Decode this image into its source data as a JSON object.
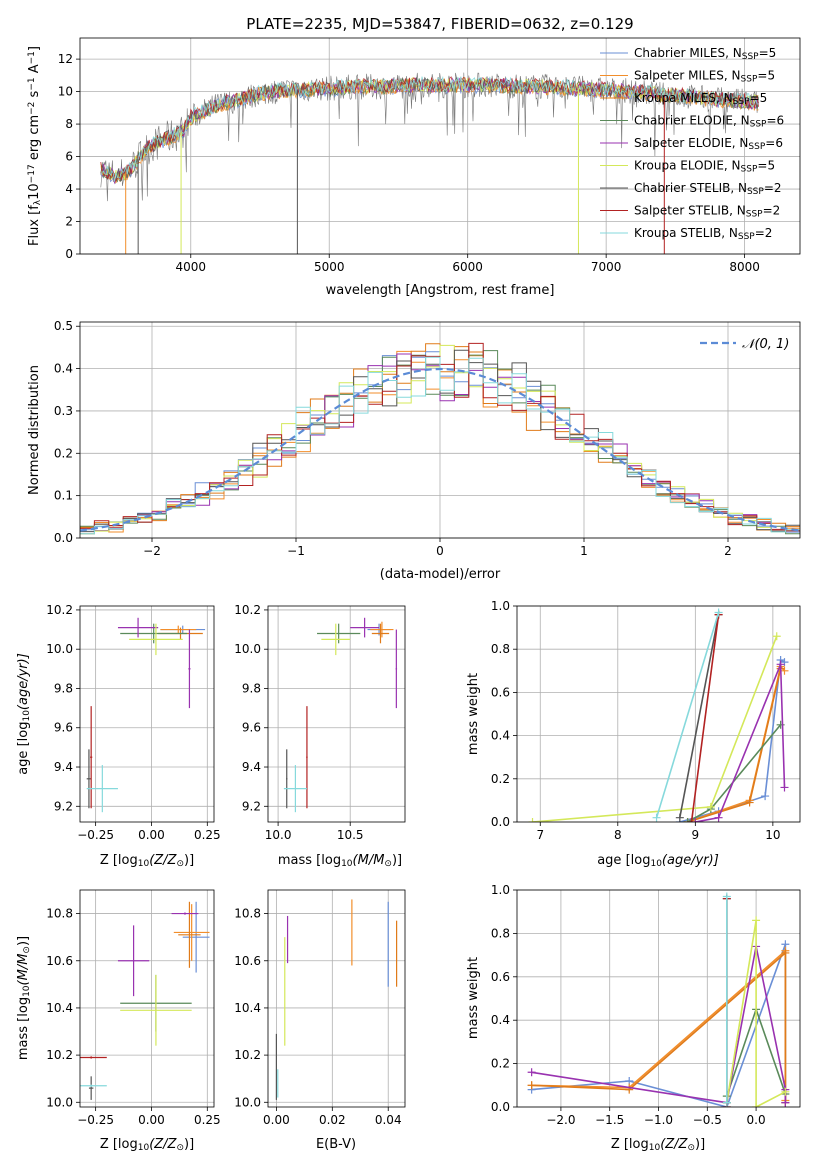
{
  "figure": {
    "title": "PLATE=2235, MJD=53847, FIBERID=0632, z=0.129"
  },
  "models": [
    {
      "label": "Chabrier MILES, N",
      "sub": "SSP",
      "suffix": "=5",
      "color": "#6a8fd6"
    },
    {
      "label": "Salpeter MILES, N",
      "sub": "SSP",
      "suffix": "=5",
      "color": "#f28e2b"
    },
    {
      "label": "Kroupa MILES, N",
      "sub": "SSP",
      "suffix": "=5",
      "color": "#e07b1a"
    },
    {
      "label": "Chabrier ELODIE, N",
      "sub": "SSP",
      "suffix": "=6",
      "color": "#5a8a5a"
    },
    {
      "label": "Salpeter ELODIE, N",
      "sub": "SSP",
      "suffix": "=6",
      "color": "#9932b0"
    },
    {
      "label": "Kroupa ELODIE, N",
      "sub": "SSP",
      "suffix": "=5",
      "color": "#d4e85a"
    },
    {
      "label": "Chabrier STELIB, N",
      "sub": "SSP",
      "suffix": "=2",
      "color": "#555555"
    },
    {
      "label": "Salpeter STELIB, N",
      "sub": "SSP",
      "suffix": "=2",
      "color": "#b22222"
    },
    {
      "label": "Kroupa STELIB, N",
      "sub": "SSP",
      "suffix": "=2",
      "color": "#86d9dc"
    }
  ],
  "chart_data": [
    {
      "id": "spectrum",
      "type": "line",
      "xlabel": "wavelength [Angstrom, rest frame]",
      "ylabel": "Flux [f",
      "ylabel_sub": "λ",
      "ylabel_rest": "10",
      "ylabel_sup1": "−17",
      "ylabel_rest2": " erg cm",
      "ylabel_sup2": "−2",
      "ylabel_rest3": " s",
      "ylabel_sup3": "−1",
      "ylabel_rest4": " A",
      "ylabel_sup4": "−1",
      "ylabel_end": "]",
      "xlim": [
        3200,
        8400
      ],
      "ylim": [
        0,
        13.3
      ],
      "xticks": [
        4000,
        5000,
        6000,
        7000,
        8000
      ],
      "yticks": [
        0,
        2,
        4,
        6,
        8,
        10,
        12
      ],
      "envelope": {
        "x": [
          3350,
          3400,
          3450,
          3500,
          3550,
          3600,
          3650,
          3700,
          3750,
          3800,
          3850,
          3900,
          3950,
          4000,
          4100,
          4200,
          4300,
          4400,
          4500,
          4600,
          4700,
          4800,
          4900,
          5000,
          5200,
          5400,
          5600,
          5800,
          6000,
          6200,
          6400,
          6600,
          6800,
          7000,
          7200,
          7400,
          7600,
          7800,
          8000,
          8100
        ],
        "y": [
          5.2,
          5.0,
          4.8,
          4.9,
          5.1,
          5.6,
          6.2,
          6.6,
          6.8,
          7.0,
          7.2,
          7.4,
          7.6,
          8.4,
          8.8,
          9.2,
          9.4,
          9.6,
          9.9,
          10.0,
          10.1,
          10.1,
          10.2,
          10.2,
          10.3,
          10.3,
          10.4,
          10.4,
          10.4,
          10.4,
          10.3,
          10.3,
          10.2,
          10.1,
          10.0,
          9.8,
          9.7,
          9.5,
          9.4,
          9.3
        ]
      },
      "dips": [
        {
          "x": 3530,
          "y": 0.0,
          "model": 1
        },
        {
          "x": 3620,
          "y": 0.0,
          "model": 6
        },
        {
          "x": 3930,
          "y": 0.0,
          "model": 5
        },
        {
          "x": 4770,
          "y": 0.0,
          "model": 6
        },
        {
          "x": 6800,
          "y": 0.0,
          "model": 5
        },
        {
          "x": 7420,
          "y": 0.0,
          "model": 7
        }
      ]
    },
    {
      "id": "residuals",
      "type": "step",
      "xlabel": "(data-model)/error",
      "ylabel": "Normed distribution",
      "xlim": [
        -2.5,
        2.5
      ],
      "ylim": [
        0,
        0.51
      ],
      "xticks": [
        -2,
        -1,
        0,
        1,
        2
      ],
      "yticks": [
        0.0,
        0.1,
        0.2,
        0.3,
        0.4,
        0.5
      ],
      "legend": "𝒩(0, 1)",
      "gaussian": {
        "mu": 0,
        "sigma": 1
      }
    },
    {
      "id": "age_vs_Z",
      "type": "errorbar",
      "xlabel": "Z [log",
      "xlabel_sub": "10",
      "xlabel_rest": "(Z/Z",
      "xlabel_sub2": "⊙",
      "xlabel_end": ")]",
      "ylabel": "age  [log",
      "ylabel_sub": "10",
      "ylabel_rest": "(age/yr)]",
      "xlim": [
        -0.32,
        0.28
      ],
      "ylim": [
        9.12,
        10.22
      ],
      "xticks": [
        -0.25,
        0.0,
        0.25
      ],
      "yticks": [
        9.2,
        9.4,
        9.6,
        9.8,
        10.0,
        10.2
      ],
      "points": [
        {
          "model": 0,
          "x": 0.14,
          "y": 10.1,
          "xerr": 0.1,
          "yerr": 0.02
        },
        {
          "model": 1,
          "x": 0.12,
          "y": 10.1,
          "xerr": 0.08,
          "yerr": 0.02
        },
        {
          "model": 2,
          "x": 0.13,
          "y": 10.08,
          "xerr": 0.1,
          "yerr": 0.03
        },
        {
          "model": 3,
          "x": 0.01,
          "y": 10.08,
          "xerr": 0.15,
          "yerr": 0.05
        },
        {
          "model": 4,
          "x": -0.06,
          "y": 10.11,
          "xerr": 0.09,
          "yerr": 0.05
        },
        {
          "model": 5,
          "x": 0.02,
          "y": 10.05,
          "xerr": 0.12,
          "yerr": 0.08
        },
        {
          "model": 6,
          "x": -0.28,
          "y": 9.34,
          "xerr": 0.01,
          "yerr": 0.15
        },
        {
          "model": 7,
          "x": -0.27,
          "y": 9.45,
          "xerr": 0.005,
          "yerr": 0.26
        },
        {
          "model": 8,
          "x": -0.22,
          "y": 9.29,
          "xerr": 0.07,
          "yerr": 0.12
        },
        {
          "model": 4,
          "x": 0.17,
          "y": 9.9,
          "xerr": 0.005,
          "yerr": 0.2
        }
      ]
    },
    {
      "id": "age_vs_mass",
      "type": "errorbar",
      "xlabel": "mass [log",
      "xlabel_sub": "10",
      "xlabel_rest": "(M/M",
      "xlabel_sub2": "⊙",
      "xlabel_end": ")]",
      "xlim": [
        9.93,
        10.88
      ],
      "ylim": [
        9.12,
        10.22
      ],
      "xticks": [
        10.0,
        10.5
      ],
      "yticks": [
        9.2,
        9.4,
        9.6,
        9.8,
        10.0,
        10.2
      ],
      "points": [
        {
          "model": 0,
          "x": 10.7,
          "y": 10.1,
          "xerr": 0.08,
          "yerr": 0.03
        },
        {
          "model": 1,
          "x": 10.72,
          "y": 10.1,
          "xerr": 0.08,
          "yerr": 0.04
        },
        {
          "model": 2,
          "x": 10.71,
          "y": 10.08,
          "xerr": 0.06,
          "yerr": 0.05
        },
        {
          "model": 3,
          "x": 10.42,
          "y": 10.08,
          "xerr": 0.15,
          "yerr": 0.05
        },
        {
          "model": 4,
          "x": 10.6,
          "y": 10.11,
          "xerr": 0.1,
          "yerr": 0.05
        },
        {
          "model": 5,
          "x": 10.4,
          "y": 10.05,
          "xerr": 0.1,
          "yerr": 0.08
        },
        {
          "model": 6,
          "x": 10.06,
          "y": 9.34,
          "xerr": 0.005,
          "yerr": 0.15
        },
        {
          "model": 7,
          "x": 10.2,
          "y": 9.45,
          "xerr": 0.005,
          "yerr": 0.26
        },
        {
          "model": 8,
          "x": 10.12,
          "y": 9.29,
          "xerr": 0.08,
          "yerr": 0.12
        },
        {
          "model": 4,
          "x": 10.82,
          "y": 9.9,
          "xerr": 0.005,
          "yerr": 0.2
        }
      ]
    },
    {
      "id": "weight_vs_age",
      "type": "line",
      "xlabel": "age  [log",
      "xlabel_sub": "10",
      "xlabel_rest": "(age/yr)]",
      "ylabel": "mass weight",
      "xlim": [
        6.7,
        10.35
      ],
      "ylim": [
        0,
        1.0
      ],
      "xticks": [
        7,
        8,
        9,
        10
      ],
      "yticks": [
        0.0,
        0.2,
        0.4,
        0.6,
        0.8,
        1.0
      ],
      "series": [
        {
          "model": 0,
          "x": [
            8.8,
            9.3,
            9.9,
            10.1,
            10.15
          ],
          "y": [
            0.0,
            0.05,
            0.12,
            0.75,
            0.74
          ]
        },
        {
          "model": 1,
          "x": [
            8.9,
            9.7,
            10.1,
            10.15
          ],
          "y": [
            0.0,
            0.1,
            0.72,
            0.7
          ]
        },
        {
          "model": 2,
          "x": [
            8.9,
            9.7,
            10.1
          ],
          "y": [
            0.0,
            0.09,
            0.71
          ]
        },
        {
          "model": 3,
          "x": [
            8.9,
            9.2,
            10.1
          ],
          "y": [
            0.0,
            0.06,
            0.45
          ]
        },
        {
          "model": 4,
          "x": [
            9.0,
            9.3,
            10.1,
            10.15
          ],
          "y": [
            0.0,
            0.02,
            0.73,
            0.16
          ]
        },
        {
          "model": 5,
          "x": [
            6.9,
            9.2,
            10.05
          ],
          "y": [
            0.0,
            0.07,
            0.86
          ]
        },
        {
          "model": 6,
          "x": [
            8.8,
            9.3
          ],
          "y": [
            0.02,
            0.96
          ]
        },
        {
          "model": 7,
          "x": [
            8.95,
            9.3
          ],
          "y": [
            0.0,
            0.96
          ]
        },
        {
          "model": 8,
          "x": [
            8.5,
            9.3
          ],
          "y": [
            0.02,
            0.97
          ]
        }
      ]
    },
    {
      "id": "mass_vs_Z",
      "type": "errorbar",
      "xlabel": "Z [log",
      "xlabel_sub": "10",
      "xlabel_rest": "(Z/Z",
      "xlabel_sub2": "⊙",
      "xlabel_end": ")]",
      "ylabel": "mass [log",
      "ylabel_sub": "10",
      "ylabel_rest": "(M/M",
      "ylabel_sub2": "⊙",
      "ylabel_end": ")]",
      "xlim": [
        -0.32,
        0.28
      ],
      "ylim": [
        9.98,
        10.9
      ],
      "xticks": [
        -0.25,
        0.0,
        0.25
      ],
      "yticks": [
        10.0,
        10.2,
        10.4,
        10.6,
        10.8
      ],
      "points": [
        {
          "model": 0,
          "x": 0.2,
          "y": 10.7,
          "xerr": 0.06,
          "yerr": 0.15
        },
        {
          "model": 1,
          "x": 0.18,
          "y": 10.72,
          "xerr": 0.08,
          "yerr": 0.12
        },
        {
          "model": 2,
          "x": 0.17,
          "y": 10.71,
          "xerr": 0.05,
          "yerr": 0.14
        },
        {
          "model": 3,
          "x": 0.02,
          "y": 10.42,
          "xerr": 0.16,
          "yerr": 0.12
        },
        {
          "model": 4,
          "x": -0.08,
          "y": 10.6,
          "xerr": 0.07,
          "yerr": 0.15
        },
        {
          "model": 5,
          "x": 0.02,
          "y": 10.39,
          "xerr": 0.16,
          "yerr": 0.15
        },
        {
          "model": 6,
          "x": -0.27,
          "y": 10.06,
          "xerr": 0.01,
          "yerr": 0.05
        },
        {
          "model": 7,
          "x": -0.27,
          "y": 10.19,
          "xerr": 0.07,
          "yerr": 0.005
        },
        {
          "model": 8,
          "x": -0.27,
          "y": 10.07,
          "xerr": 0.07,
          "yerr": 0.005
        },
        {
          "model": 4,
          "x": 0.15,
          "y": 10.8,
          "xerr": 0.06,
          "yerr": 0.005
        }
      ]
    },
    {
      "id": "mass_vs_ebv",
      "type": "errorbar",
      "xlabel": "E(B-V)",
      "xlim": [
        -0.003,
        0.046
      ],
      "ylim": [
        9.98,
        10.9
      ],
      "xticks": [
        0.0,
        0.02,
        0.04
      ],
      "yticks": [
        10.0,
        10.2,
        10.4,
        10.6,
        10.8
      ],
      "points": [
        {
          "model": 0,
          "x": 0.04,
          "y": 10.67,
          "xerr": 0.0,
          "yerr": 0.18
        },
        {
          "model": 2,
          "x": 0.043,
          "y": 10.63,
          "xerr": 0.0,
          "yerr": 0.14
        },
        {
          "model": 4,
          "x": 0.004,
          "y": 10.69,
          "xerr": 0.0,
          "yerr": 0.1
        },
        {
          "model": 5,
          "x": 0.003,
          "y": 10.47,
          "xerr": 0.0,
          "yerr": 0.23
        },
        {
          "model": 1,
          "x": 0.027,
          "y": 10.72,
          "xerr": 0.0,
          "yerr": 0.14
        },
        {
          "model": 6,
          "x": 0.0,
          "y": 10.15,
          "xerr": 0.0,
          "yerr": 0.14
        },
        {
          "model": 8,
          "x": 0.0005,
          "y": 10.08,
          "xerr": 0.0,
          "yerr": 0.06
        }
      ]
    },
    {
      "id": "weight_vs_Z",
      "type": "line",
      "xlabel": "Z [log",
      "xlabel_sub": "10",
      "xlabel_rest": "(Z/Z",
      "xlabel_sub2": "⊙",
      "xlabel_end": ")]",
      "ylabel": "mass weight",
      "xlim": [
        -2.45,
        0.45
      ],
      "ylim": [
        0,
        1.0
      ],
      "xticks": [
        -2.0,
        -1.5,
        -1.0,
        -0.5,
        0.0
      ],
      "yticks": [
        0.0,
        0.2,
        0.4,
        0.6,
        0.8,
        1.0
      ],
      "series": [
        {
          "model": 0,
          "x": [
            -2.3,
            -1.3,
            -0.3,
            0.3,
            0.3
          ],
          "y": [
            0.08,
            0.12,
            0.0,
            0.75,
            0.02
          ]
        },
        {
          "model": 1,
          "x": [
            -2.3,
            -1.3,
            0.3,
            0.3
          ],
          "y": [
            0.1,
            0.09,
            0.72,
            0.03
          ]
        },
        {
          "model": 2,
          "x": [
            -2.3,
            -1.3,
            0.3,
            0.3
          ],
          "y": [
            0.1,
            0.08,
            0.71,
            0.02
          ]
        },
        {
          "model": 3,
          "x": [
            -0.3,
            0.0,
            0.3
          ],
          "y": [
            0.05,
            0.45,
            0.06
          ]
        },
        {
          "model": 4,
          "x": [
            -2.3,
            -0.3,
            0.0,
            0.3,
            0.3
          ],
          "y": [
            0.16,
            0.02,
            0.74,
            0.08,
            0.02
          ]
        },
        {
          "model": 5,
          "x": [
            -0.3,
            0.0,
            0.0,
            0.3
          ],
          "y": [
            0.02,
            0.86,
            0.0,
            0.07
          ]
        },
        {
          "model": 6,
          "x": [
            -0.3,
            -0.3
          ],
          "y": [
            0.02,
            0.96
          ]
        },
        {
          "model": 7,
          "x": [
            -0.3,
            -0.3
          ],
          "y": [
            0.0,
            0.96
          ]
        },
        {
          "model": 8,
          "x": [
            -0.3,
            -0.3
          ],
          "y": [
            0.02,
            0.97
          ]
        }
      ]
    }
  ]
}
